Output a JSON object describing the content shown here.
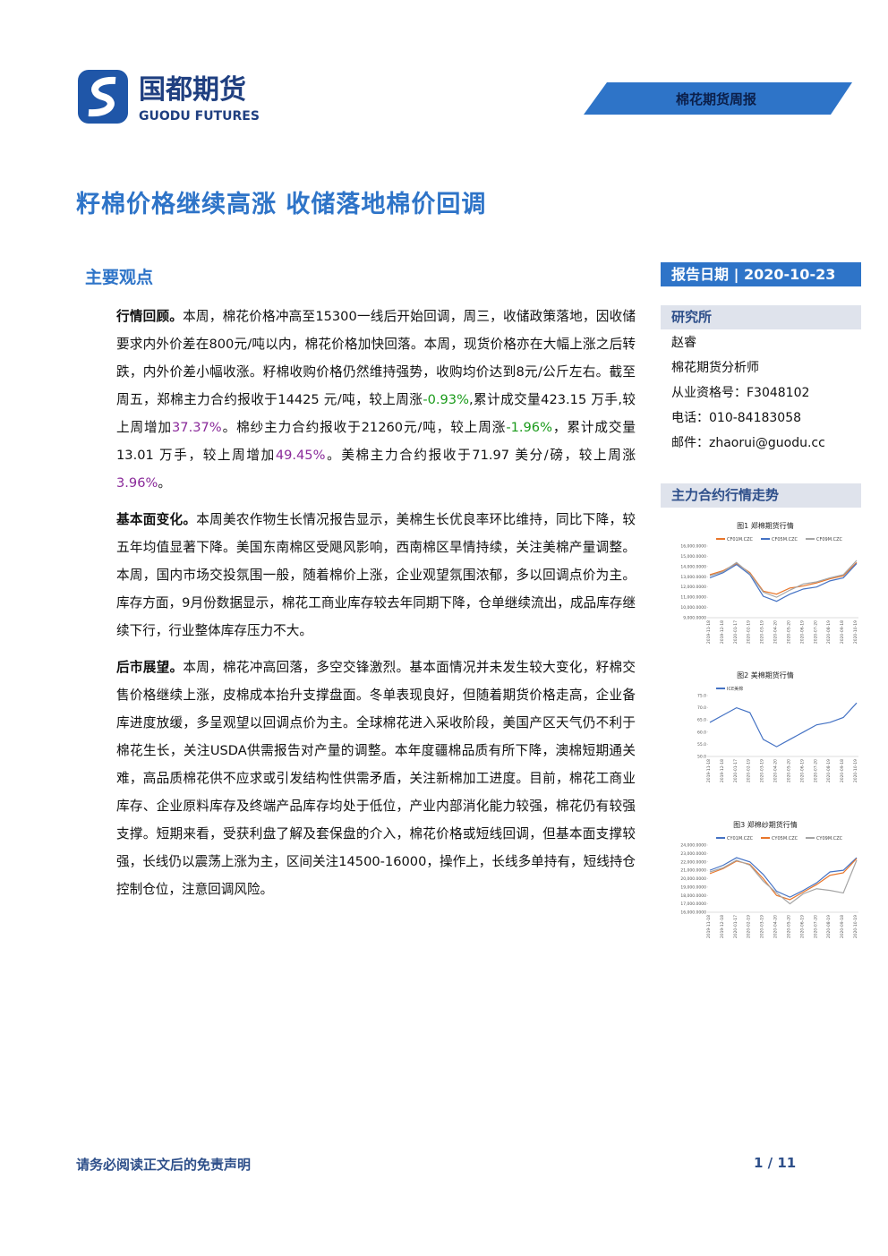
{
  "header": {
    "logo_cn": "国都期货",
    "logo_en": "GUODU FUTURES",
    "tag": "棉花期货周报"
  },
  "title": "籽棉价格继续高涨 收储落地棉价回调",
  "section": "主要观点",
  "paragraphs": [
    [
      {
        "text": "行情回顾。",
        "bold": true
      },
      {
        "text": "本周，棉花价格冲高至15300一线后开始回调，周三，收储政策落地，因收储要求内外价差在800元/吨以内，棉花价格加快回落。本周，现货价格亦在大幅上涨之后转跌，内外价差小幅收涨。籽棉收购价格仍然维持强势，收购均价达到8元/公斤左右。截至周五，郑棉主力合约报收于14425 元/吨，较上周涨"
      },
      {
        "text": "-0.93%",
        "color": "#1a9a1a"
      },
      {
        "text": ",累计成交量423.15 万手,较上周增加"
      },
      {
        "text": "37.37%",
        "color": "#8a2a9a"
      },
      {
        "text": "。棉纱主力合约报收于21260元/吨，较上周涨"
      },
      {
        "text": "-1.96%",
        "color": "#1a9a1a"
      },
      {
        "text": "，累计成交量13.01 万手，较上周增加"
      },
      {
        "text": "49.45%",
        "color": "#8a2a9a"
      },
      {
        "text": "。美棉主力合约报收于71.97 美分/磅，较上周涨"
      },
      {
        "text": "3.96%",
        "color": "#8a2a9a"
      },
      {
        "text": "。"
      }
    ],
    [
      {
        "text": "基本面变化。",
        "bold": true
      },
      {
        "text": "本周美农作物生长情况报告显示，美棉生长优良率环比维持，同比下降，较五年均值显著下降。美国东南棉区受飓风影响，西南棉区旱情持续，关注美棉产量调整。本周，国内市场交投氛围一般，随着棉价上涨，企业观望氛围浓郁，多以回调点价为主。库存方面，9月份数据显示，棉花工商业库存较去年同期下降，仓单继续流出，成品库存继续下行，行业整体库存压力不大。"
      }
    ],
    [
      {
        "text": "后市展望。",
        "bold": true
      },
      {
        "text": "本周，棉花冲高回落，多空交锋激烈。基本面情况并未发生较大变化，籽棉交售价格继续上涨，皮棉成本抬升支撑盘面。冬单表现良好，但随着期货价格走高，企业备库进度放缓，多呈观望以回调点价为主。全球棉花进入采收阶段，美国产区天气仍不利于棉花生长，关注USDA供需报告对产量的调整。本年度疆棉品质有所下降，澳棉短期通关难，高品质棉花供不应求或引发结构性供需矛盾，关注新棉加工进度。目前，棉花工商业库存、企业原料库存及终端产品库存均处于低位，产业内部消化能力较强，棉花仍有较强支撑。短期来看，受获利盘了解及套保盘的介入，棉花价格或短线回调，但基本面支撑较强，长线仍以震荡上涨为主，区间关注14500-16000，操作上，长线多单持有，短线持仓控制仓位，注意回调风险。"
      }
    ]
  ],
  "sidebar": {
    "date_label": "报告日期",
    "date": "2020-10-23",
    "dept": "研究所",
    "lines": [
      "赵睿",
      "棉花期货分析师",
      "从业资格号：F3048102",
      "电话：010-84183058",
      "邮件：zhaorui@guodu.cc"
    ],
    "charts_heading": "主力合约行情走势"
  },
  "chart_data": [
    {
      "type": "line",
      "title": "图1 郑棉期货行情",
      "x": [
        "2019-11-18",
        "2019-12-18",
        "2020-01-17",
        "2020-02-19",
        "2020-03-19",
        "2020-04-20",
        "2020-05-20",
        "2020-06-19",
        "2020-07-20",
        "2020-08-19",
        "2020-09-18",
        "2020-10-19"
      ],
      "series": [
        {
          "name": "CF01M.CZC",
          "color": "#e8762b",
          "values": [
            13200,
            13600,
            14300,
            13400,
            11600,
            11300,
            11900,
            12100,
            12400,
            12800,
            13100,
            14400
          ]
        },
        {
          "name": "CF05M.CZC",
          "color": "#4472c4",
          "values": [
            12900,
            13400,
            14200,
            13200,
            11100,
            10600,
            11300,
            11800,
            12000,
            12600,
            12900,
            14300
          ]
        },
        {
          "name": "CF09M.CZC",
          "color": "#a5a5a5",
          "values": [
            13100,
            13500,
            14400,
            13300,
            11500,
            11000,
            11700,
            12300,
            12500,
            12900,
            13200,
            14600
          ]
        }
      ],
      "ylim": [
        9000,
        16000
      ],
      "yticks": [
        {
          "value": 9000,
          "label": "9,000.0000"
        },
        {
          "value": 10000,
          "label": "10,000.0000"
        },
        {
          "value": 11000,
          "label": "11,000.0000"
        },
        {
          "value": 12000,
          "label": "12,000.0000"
        },
        {
          "value": 13000,
          "label": "13,000.0000"
        },
        {
          "value": 14000,
          "label": "14,000.0000"
        },
        {
          "value": 15000,
          "label": "15,000.0000"
        },
        {
          "value": 16000,
          "label": "16,000.0000"
        }
      ]
    },
    {
      "type": "line",
      "title": "图2 美棉期货行情",
      "x": [
        "2019-11-18",
        "2019-12-18",
        "2020-01-17",
        "2020-02-19",
        "2020-03-19",
        "2020-04-20",
        "2020-05-20",
        "2020-06-19",
        "2020-07-20",
        "2020-08-19",
        "2020-09-18",
        "2020-10-19"
      ],
      "series": [
        {
          "name": "ICE美棉",
          "color": "#4472c4",
          "values": [
            64,
            67,
            70,
            68,
            57,
            54,
            57,
            60,
            63,
            64,
            66,
            72
          ]
        }
      ],
      "ylim": [
        50,
        75
      ],
      "yticks": [
        {
          "value": 50,
          "label": "50.0"
        },
        {
          "value": 55,
          "label": "55.0"
        },
        {
          "value": 60,
          "label": "60.0"
        },
        {
          "value": 65,
          "label": "65.0"
        },
        {
          "value": 70,
          "label": "70.0"
        },
        {
          "value": 75,
          "label": "75.0"
        }
      ]
    },
    {
      "type": "line",
      "title": "图3 郑棉纱期货行情",
      "x": [
        "2019-11-18",
        "2019-12-18",
        "2020-01-17",
        "2020-02-19",
        "2020-03-19",
        "2020-04-20",
        "2020-05-20",
        "2020-06-19",
        "2020-07-20",
        "2020-08-19",
        "2020-09-18",
        "2020-10-19"
      ],
      "series": [
        {
          "name": "CY01M.CZC",
          "color": "#4472c4",
          "values": [
            21000,
            21600,
            22500,
            22000,
            20500,
            18500,
            17800,
            18600,
            19500,
            20800,
            21000,
            22500
          ]
        },
        {
          "name": "CY05M.CZC",
          "color": "#e8762b",
          "values": [
            20600,
            21200,
            22100,
            21700,
            20000,
            18000,
            17500,
            18400,
            19300,
            20400,
            20700,
            22400
          ]
        },
        {
          "name": "CY09M.CZC",
          "color": "#a5a5a5",
          "values": [
            20800,
            21300,
            22200,
            21600,
            19700,
            18300,
            17000,
            18200,
            18800,
            18600,
            18300,
            22200
          ]
        }
      ],
      "ylim": [
        16000,
        24000
      ],
      "yticks": [
        {
          "value": 16000,
          "label": "16,000.0000"
        },
        {
          "value": 17000,
          "label": "17,000.0000"
        },
        {
          "value": 18000,
          "label": "18,000.0000"
        },
        {
          "value": 19000,
          "label": "19,000.0000"
        },
        {
          "value": 20000,
          "label": "20,000.0000"
        },
        {
          "value": 21000,
          "label": "21,000.0000"
        },
        {
          "value": 22000,
          "label": "22,000.0000"
        },
        {
          "value": 23000,
          "label": "23,000.0000"
        },
        {
          "value": 24000,
          "label": "24,000.0000"
        }
      ]
    }
  ],
  "footer": {
    "disclaimer": "请务必阅读正文后的免责声明",
    "page": "1 / 11"
  }
}
